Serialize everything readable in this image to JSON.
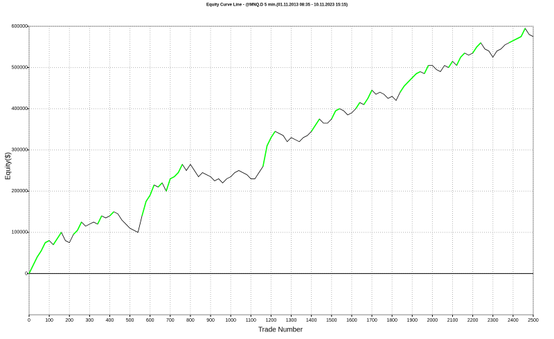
{
  "chart_data": {
    "type": "line",
    "title": "Equity Curve Line - @MNQ.D 5 min.(01.11.2013 08:35 - 10.11.2023 15:15)",
    "x_label": "Trade Number",
    "y_label": "Equity($)",
    "x": [
      0,
      20,
      40,
      60,
      80,
      100,
      120,
      140,
      160,
      180,
      200,
      220,
      240,
      260,
      280,
      300,
      320,
      340,
      360,
      380,
      400,
      420,
      440,
      460,
      480,
      500,
      520,
      540,
      560,
      580,
      600,
      620,
      640,
      660,
      680,
      700,
      720,
      740,
      760,
      780,
      800,
      820,
      840,
      860,
      880,
      900,
      920,
      940,
      960,
      980,
      1000,
      1020,
      1040,
      1060,
      1080,
      1100,
      1120,
      1140,
      1160,
      1180,
      1200,
      1220,
      1240,
      1260,
      1280,
      1300,
      1320,
      1340,
      1360,
      1380,
      1400,
      1420,
      1440,
      1460,
      1480,
      1500,
      1520,
      1540,
      1560,
      1580,
      1600,
      1620,
      1640,
      1660,
      1680,
      1700,
      1720,
      1740,
      1760,
      1780,
      1800,
      1820,
      1840,
      1860,
      1880,
      1900,
      1920,
      1940,
      1960,
      1980,
      2000,
      2020,
      2040,
      2060,
      2080,
      2100,
      2120,
      2140,
      2160,
      2180,
      2200,
      2220,
      2240,
      2260,
      2280,
      2300,
      2320,
      2340,
      2360,
      2380,
      2400,
      2420,
      2440,
      2460,
      2480,
      2500
    ],
    "series": [
      {
        "name": "Equity",
        "color": "#000000",
        "new_high_color": "#00ff00",
        "values": [
          0,
          20000,
          40000,
          55000,
          75000,
          80000,
          70000,
          85000,
          100000,
          80000,
          75000,
          95000,
          105000,
          125000,
          115000,
          120000,
          125000,
          120000,
          140000,
          135000,
          140000,
          150000,
          145000,
          130000,
          120000,
          110000,
          105000,
          100000,
          140000,
          175000,
          190000,
          215000,
          210000,
          220000,
          200000,
          230000,
          235000,
          245000,
          265000,
          250000,
          265000,
          250000,
          235000,
          245000,
          240000,
          235000,
          225000,
          230000,
          220000,
          230000,
          235000,
          245000,
          250000,
          245000,
          240000,
          230000,
          230000,
          245000,
          260000,
          310000,
          330000,
          345000,
          340000,
          335000,
          320000,
          330000,
          325000,
          320000,
          330000,
          335000,
          345000,
          360000,
          375000,
          365000,
          365000,
          375000,
          395000,
          400000,
          395000,
          385000,
          390000,
          400000,
          415000,
          410000,
          425000,
          445000,
          435000,
          440000,
          435000,
          425000,
          430000,
          420000,
          440000,
          455000,
          465000,
          475000,
          485000,
          490000,
          485000,
          505000,
          505000,
          495000,
          490000,
          505000,
          500000,
          515000,
          505000,
          525000,
          535000,
          530000,
          535000,
          550000,
          560000,
          545000,
          540000,
          525000,
          540000,
          545000,
          555000,
          560000,
          565000,
          570000,
          575000,
          595000,
          580000,
          575000
        ]
      }
    ],
    "xlim": [
      0,
      2500
    ],
    "xticks": [
      0,
      100,
      200,
      300,
      400,
      500,
      600,
      700,
      800,
      900,
      1000,
      1100,
      1200,
      1300,
      1400,
      1500,
      1600,
      1700,
      1800,
      1900,
      2000,
      2100,
      2200,
      2300,
      2400,
      2500
    ],
    "ylim": [
      -100000,
      600000
    ],
    "yticks": [
      0,
      100000,
      200000,
      300000,
      400000,
      500000,
      600000
    ],
    "grid": true
  }
}
